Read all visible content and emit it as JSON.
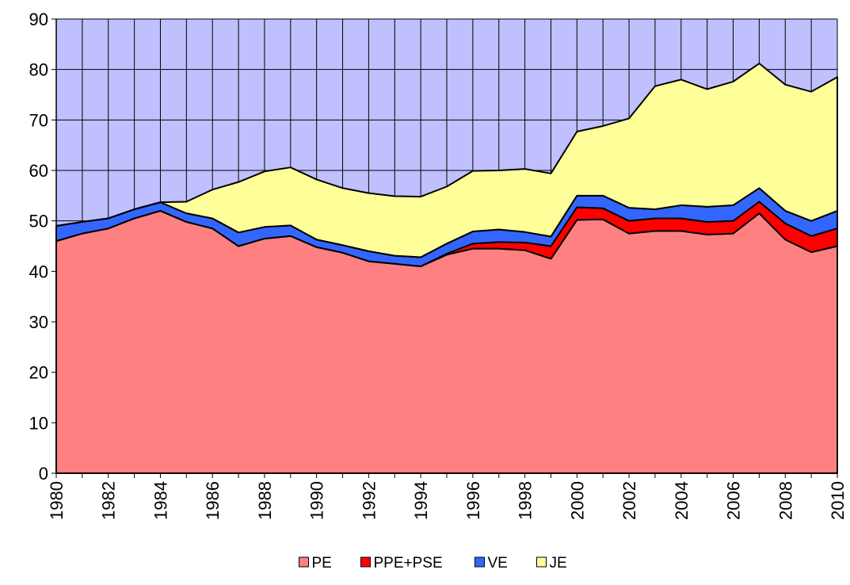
{
  "chart_data": {
    "type": "stacked_area",
    "x": [
      1980,
      1981,
      1982,
      1983,
      1984,
      1985,
      1986,
      1987,
      1988,
      1989,
      1990,
      1991,
      1992,
      1993,
      1994,
      1995,
      1996,
      1997,
      1998,
      1999,
      2000,
      2001,
      2002,
      2003,
      2004,
      2005,
      2006,
      2007,
      2008,
      2009,
      2010
    ],
    "series": [
      {
        "name": "PE",
        "color": "#ff8080",
        "values": [
          46,
          47.5,
          48.5,
          50.5,
          52,
          49.8,
          48.5,
          45,
          46.5,
          47,
          44.8,
          43.7,
          42,
          41.5,
          41,
          43.3,
          44.5,
          44.5,
          44.2,
          42.5,
          50.2,
          50.3,
          47.5,
          48,
          48,
          47.3,
          47.5,
          51.5,
          46.3,
          43.8,
          45
        ]
      },
      {
        "name": "PPE+PSE",
        "color": "#ff0000",
        "values": [
          0,
          0,
          0,
          0,
          0,
          0,
          0,
          0,
          0,
          0,
          0,
          0,
          0,
          0,
          0,
          0.2,
          1,
          1.3,
          1.5,
          2.5,
          2.5,
          2.2,
          2.5,
          2.5,
          2.5,
          2.5,
          2.5,
          2.3,
          3.2,
          3.2,
          3.5
        ]
      },
      {
        "name": "VE",
        "color": "#3366ff",
        "values": [
          3,
          2.3,
          2,
          1.8,
          1.7,
          1.7,
          2,
          2.7,
          2.3,
          2.1,
          1.5,
          1.5,
          2,
          1.6,
          1.8,
          2,
          2.4,
          2.5,
          2.1,
          1.9,
          2.3,
          2.5,
          2.6,
          1.8,
          2.6,
          3,
          3.1,
          2.7,
          2.5,
          3,
          3.5
        ]
      },
      {
        "name": "JE",
        "color": "#ffff99",
        "values": [
          0,
          0,
          0,
          0,
          0,
          2.3,
          5.7,
          10,
          11,
          11.5,
          11.9,
          11.3,
          11.5,
          11.8,
          12,
          11.3,
          12,
          11.7,
          12.5,
          12.5,
          12.7,
          13.8,
          17.7,
          24.4,
          24.9,
          23.3,
          24.5,
          24.7,
          25,
          25.6,
          26.5
        ]
      }
    ],
    "xlim": [
      1980,
      2010
    ],
    "xticks": [
      1980,
      1982,
      1984,
      1986,
      1988,
      1990,
      1992,
      1994,
      1996,
      1998,
      2000,
      2002,
      2004,
      2006,
      2008,
      2010
    ],
    "ylim": [
      0,
      90
    ],
    "yticks": [
      0,
      10,
      20,
      30,
      40,
      50,
      60,
      70,
      80,
      90
    ],
    "grid": true,
    "background": "#c0c0ff",
    "legend": "bottom"
  }
}
